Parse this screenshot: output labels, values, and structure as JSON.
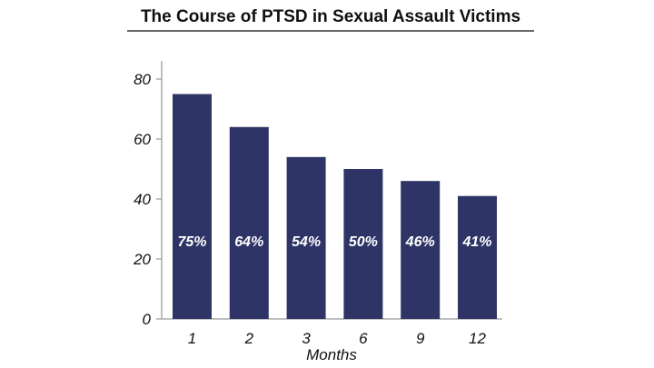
{
  "chart_data": {
    "type": "bar",
    "title": "The Course of PTSD in Sexual Assault Victims",
    "xlabel": "Months",
    "ylabel": "",
    "categories": [
      "1",
      "2",
      "3",
      "6",
      "9",
      "12"
    ],
    "values": [
      75,
      64,
      54,
      50,
      46,
      41
    ],
    "data_labels": [
      "75%",
      "64%",
      "54%",
      "50%",
      "46%",
      "41%"
    ],
    "yticks": [
      0,
      20,
      40,
      60,
      80
    ],
    "ylim": [
      0,
      86
    ],
    "grid": false,
    "bar_color": "#2e3566"
  }
}
